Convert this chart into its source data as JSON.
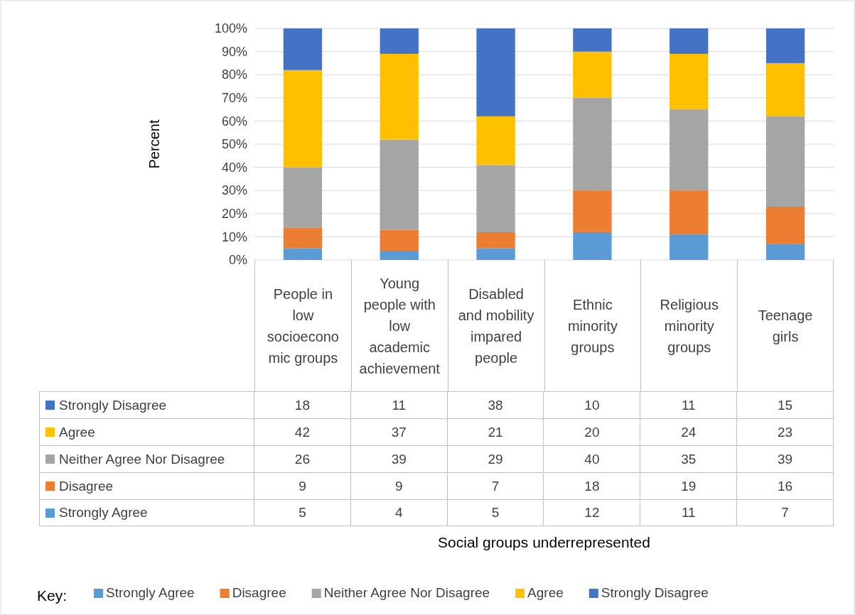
{
  "chart_data": {
    "type": "bar",
    "stacked": true,
    "categories": [
      "People in low socioeconomic groups",
      "Young people with low academic achievement",
      "Disabled and mobility impared people",
      "Ethnic minority groups",
      "Religious minority groups",
      "Teenage girls"
    ],
    "series": [
      {
        "name": "Strongly Agree",
        "color": "#5b9bd5",
        "values": [
          5,
          4,
          5,
          12,
          11,
          7
        ]
      },
      {
        "name": "Disagree",
        "color": "#ed7d31",
        "values": [
          9,
          9,
          7,
          18,
          19,
          16
        ]
      },
      {
        "name": "Neither Agree Nor Disagree",
        "color": "#a5a5a5",
        "values": [
          26,
          39,
          29,
          40,
          35,
          39
        ]
      },
      {
        "name": "Agree",
        "color": "#ffc000",
        "values": [
          42,
          37,
          21,
          20,
          24,
          23
        ]
      },
      {
        "name": "Strongly Disagree",
        "color": "#4472c4",
        "values": [
          18,
          11,
          38,
          10,
          11,
          15
        ]
      }
    ],
    "ylim": [
      0,
      100
    ],
    "yticks": [
      {
        "value": 0,
        "label": "0%"
      },
      {
        "value": 10,
        "label": "10%"
      },
      {
        "value": 20,
        "label": "20%"
      },
      {
        "value": 30,
        "label": "30%"
      },
      {
        "value": 40,
        "label": "40%"
      },
      {
        "value": 50,
        "label": "50%"
      },
      {
        "value": 60,
        "label": "60%"
      },
      {
        "value": 70,
        "label": "70%"
      },
      {
        "value": 80,
        "label": "80%"
      },
      {
        "value": 90,
        "label": "90%"
      },
      {
        "value": 100,
        "label": "100%"
      }
    ],
    "grid": "y",
    "ylabel": "Percent",
    "annotations": [
      "Social groups underrepresented"
    ],
    "data_labels": true,
    "legend": "bottom",
    "legend_title": "Key:"
  }
}
